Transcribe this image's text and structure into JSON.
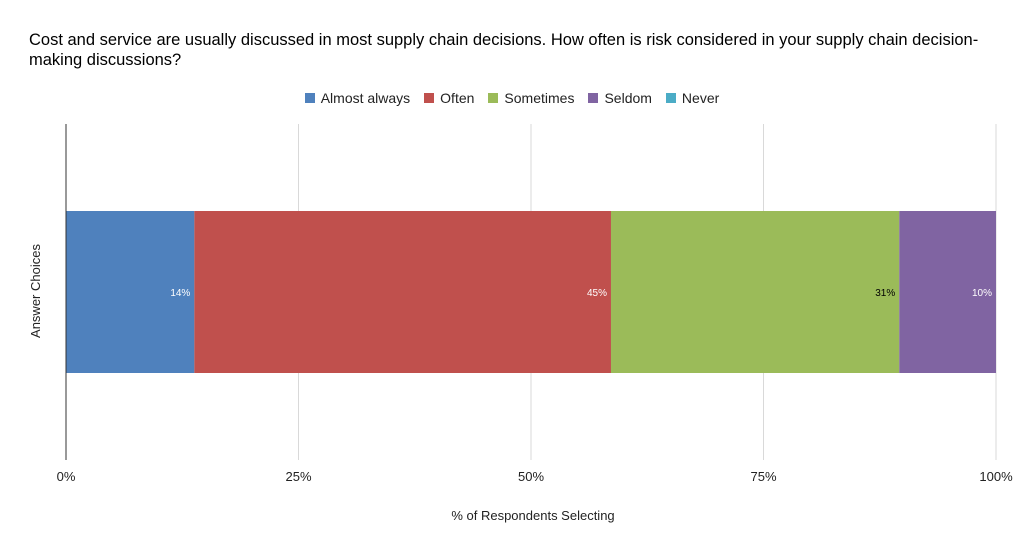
{
  "chart_data": {
    "type": "bar",
    "orientation": "horizontal",
    "stacked": true,
    "title": "Cost and service are usually discussed in most supply chain decisions. How often is risk considered in your supply chain decision-making discussions?",
    "xlabel": "% of Respondents Selecting",
    "ylabel": "Answer Choices",
    "xlim": [
      0,
      100
    ],
    "x_ticks": [
      "0%",
      "25%",
      "50%",
      "75%",
      "100%"
    ],
    "x_tick_values": [
      0,
      25,
      50,
      75,
      100
    ],
    "grid": true,
    "legend_position": "top",
    "categories": [
      ""
    ],
    "series": [
      {
        "name": "Almost always",
        "values": [
          13.8
        ],
        "label": "14%",
        "color": "#4f81bd",
        "label_color": "#ffffff"
      },
      {
        "name": "Often",
        "values": [
          44.8
        ],
        "label": "45%",
        "color": "#c0504d",
        "label_color": "#ffffff"
      },
      {
        "name": "Sometimes",
        "values": [
          31.0
        ],
        "label": "31%",
        "color": "#9bbb59",
        "label_color": "#000000"
      },
      {
        "name": "Seldom",
        "values": [
          10.4
        ],
        "label": "10%",
        "color": "#8064a2",
        "label_color": "#ffffff"
      },
      {
        "name": "Never",
        "values": [
          0
        ],
        "label": "",
        "color": "#4bacc6",
        "label_color": "#ffffff"
      }
    ]
  }
}
